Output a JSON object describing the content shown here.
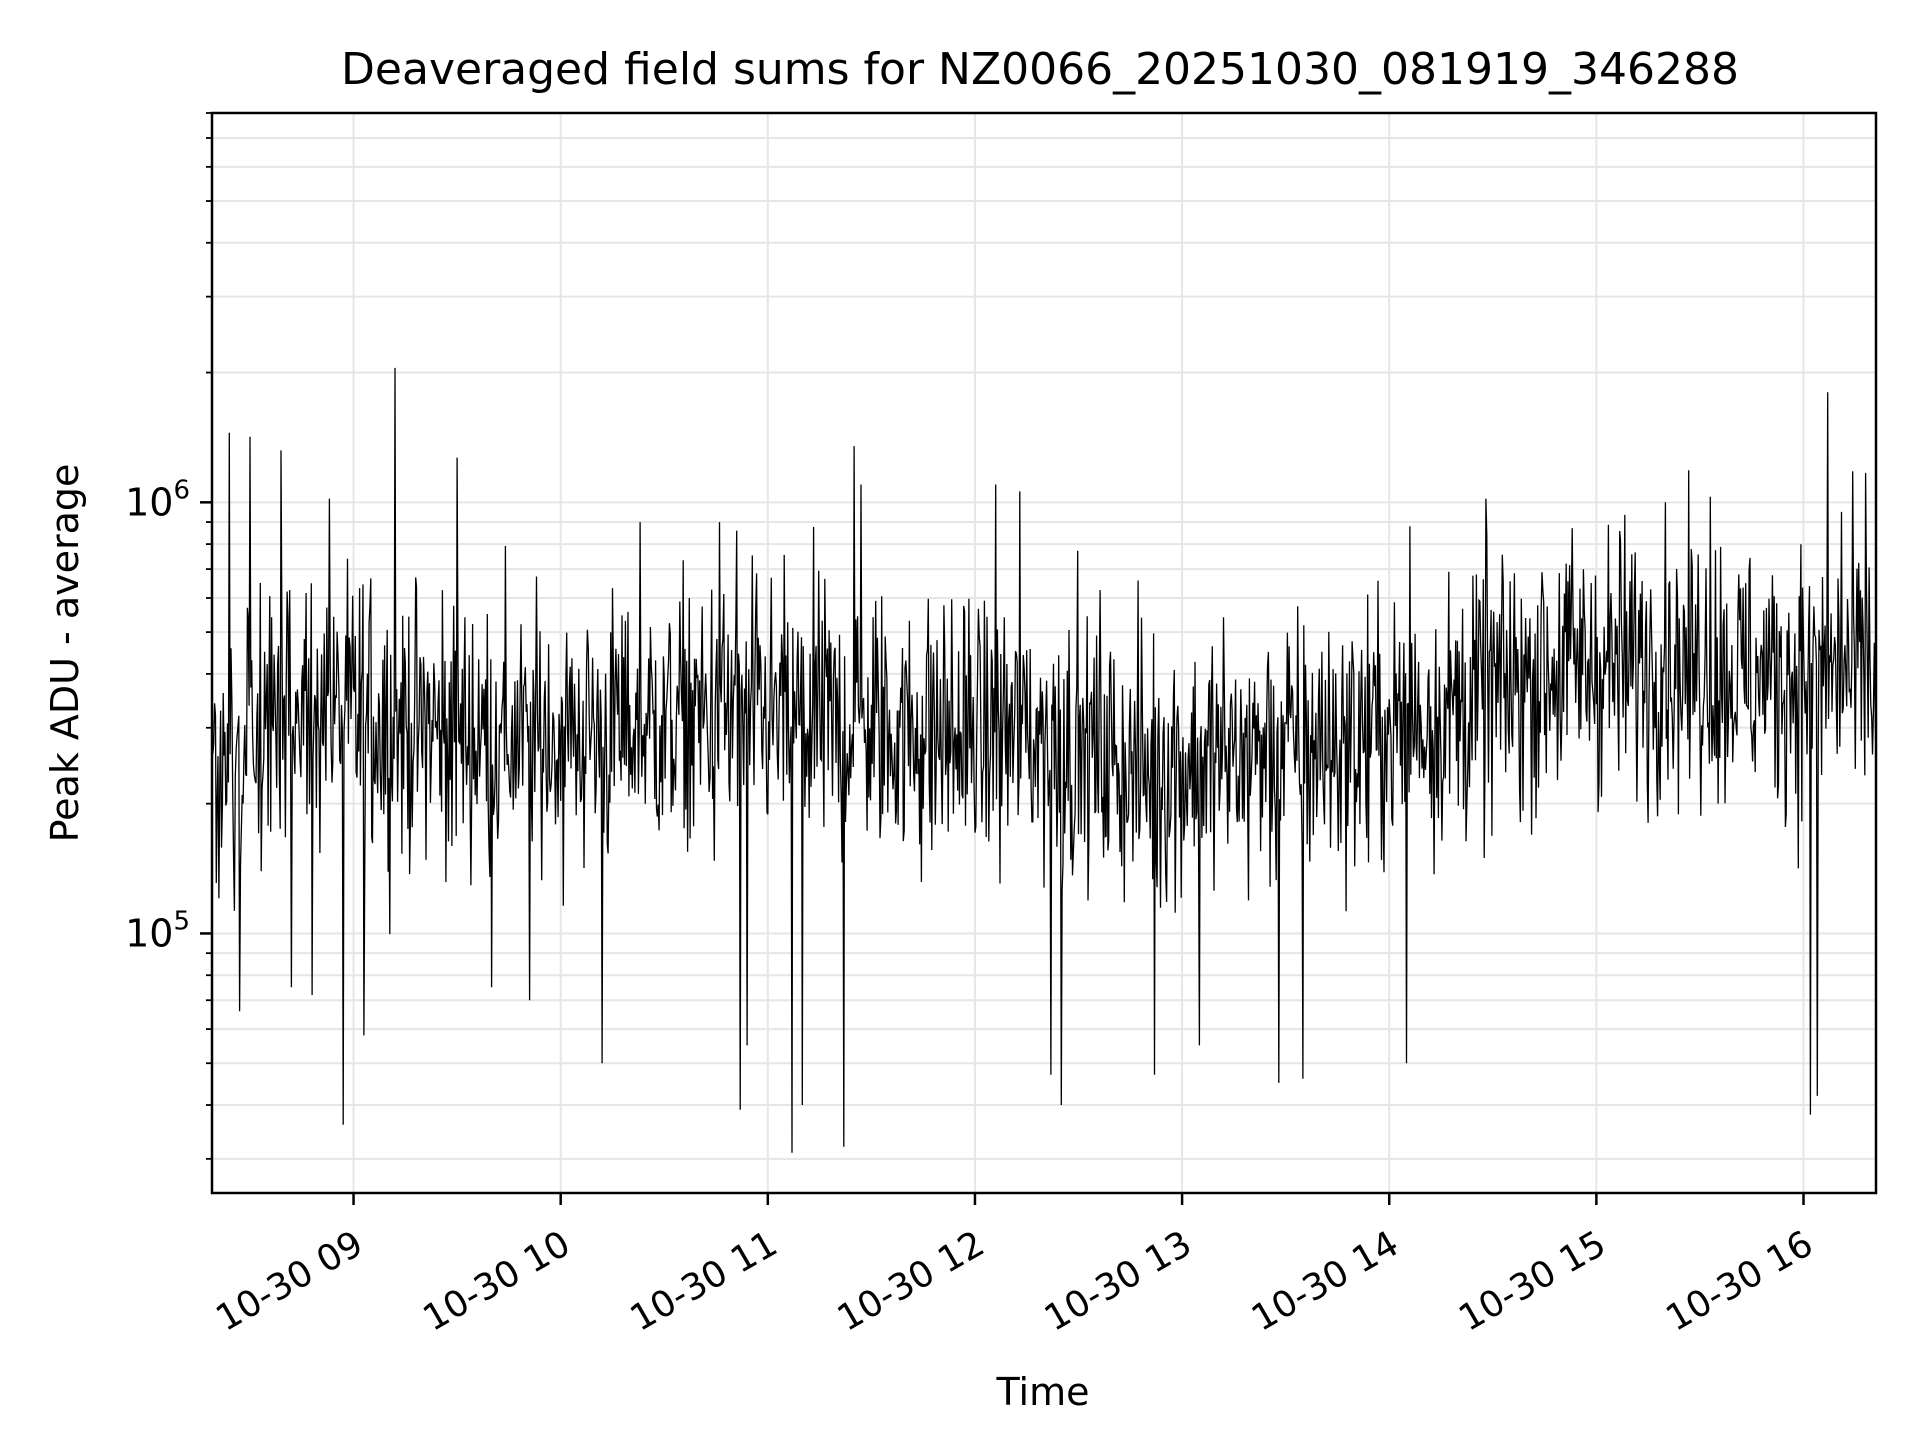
{
  "chart_data": {
    "type": "line",
    "title": "Deaveraged field sums for NZ0066_20251030_081919_346288",
    "xlabel": "Time",
    "ylabel": "Peak ADU - average",
    "yscale": "log",
    "xlim": [
      "2025-10-30 08:19",
      "2025-10-30 16:21"
    ],
    "ylim": [
      25000,
      8000000
    ],
    "x_ticks": [
      {
        "value": "2025-10-30 09:00",
        "label": "10-30 09"
      },
      {
        "value": "2025-10-30 10:00",
        "label": "10-30 10"
      },
      {
        "value": "2025-10-30 11:00",
        "label": "10-30 11"
      },
      {
        "value": "2025-10-30 12:00",
        "label": "10-30 12"
      },
      {
        "value": "2025-10-30 13:00",
        "label": "10-30 13"
      },
      {
        "value": "2025-10-30 14:00",
        "label": "10-30 14"
      },
      {
        "value": "2025-10-30 15:00",
        "label": "10-30 15"
      },
      {
        "value": "2025-10-30 16:00",
        "label": "10-30 16"
      }
    ],
    "y_ticks": [
      {
        "value": 100000,
        "base": "10",
        "exp": "5"
      },
      {
        "value": 1000000,
        "base": "10",
        "exp": "6"
      }
    ],
    "grid": true,
    "series": [
      {
        "name": "deaveraged field sum",
        "color": "#000000",
        "sample_minutes": 0.25,
        "baseline_hours": [
          0,
          0.5,
          1.0,
          1.5,
          2.0,
          2.5,
          3.0,
          3.5,
          4.0,
          4.5,
          5.0,
          5.5,
          6.0,
          6.5,
          7.0,
          7.5,
          8.0
        ],
        "baseline_values": [
          250000,
          330000,
          300000,
          280000,
          300000,
          320000,
          310000,
          290000,
          290000,
          240000,
          260000,
          280000,
          330000,
          420000,
          430000,
          390000,
          400000
        ],
        "spread_log10": 0.28,
        "extremes": [
          {
            "t": "08:20",
            "y": 320000
          },
          {
            "t": "08:24",
            "y": 1450000
          },
          {
            "t": "08:27",
            "y": 66000
          },
          {
            "t": "08:30",
            "y": 1420000
          },
          {
            "t": "08:33",
            "y": 650000
          },
          {
            "t": "08:39",
            "y": 1320000
          },
          {
            "t": "08:42",
            "y": 75000
          },
          {
            "t": "08:48",
            "y": 72000
          },
          {
            "t": "08:53",
            "y": 1020000
          },
          {
            "t": "08:57",
            "y": 36000
          },
          {
            "t": "09:03",
            "y": 58000
          },
          {
            "t": "09:12",
            "y": 2050000
          },
          {
            "t": "09:30",
            "y": 1270000
          },
          {
            "t": "09:40",
            "y": 75000
          },
          {
            "t": "09:51",
            "y": 70000
          },
          {
            "t": "10:12",
            "y": 50000
          },
          {
            "t": "10:23",
            "y": 900000
          },
          {
            "t": "10:46",
            "y": 900000
          },
          {
            "t": "10:51",
            "y": 860000
          },
          {
            "t": "10:52",
            "y": 39000
          },
          {
            "t": "10:54",
            "y": 55000
          },
          {
            "t": "11:07",
            "y": 31000
          },
          {
            "t": "11:10",
            "y": 40000
          },
          {
            "t": "11:22",
            "y": 32000
          },
          {
            "t": "11:25",
            "y": 1350000
          },
          {
            "t": "11:27",
            "y": 1100000
          },
          {
            "t": "12:06",
            "y": 1100000
          },
          {
            "t": "12:13",
            "y": 1060000
          },
          {
            "t": "12:22",
            "y": 47000
          },
          {
            "t": "12:25",
            "y": 40000
          },
          {
            "t": "12:52",
            "y": 47000
          },
          {
            "t": "13:05",
            "y": 55000
          },
          {
            "t": "13:28",
            "y": 45000
          },
          {
            "t": "13:35",
            "y": 46000
          },
          {
            "t": "14:05",
            "y": 50000
          },
          {
            "t": "14:06",
            "y": 880000
          },
          {
            "t": "14:28",
            "y": 1020000
          },
          {
            "t": "15:20",
            "y": 1000000
          },
          {
            "t": "15:33",
            "y": 1030000
          },
          {
            "t": "16:02",
            "y": 38000
          },
          {
            "t": "16:04",
            "y": 42000
          },
          {
            "t": "16:07",
            "y": 1800000
          },
          {
            "t": "16:11",
            "y": 950000
          },
          {
            "t": "16:18",
            "y": 1170000
          },
          {
            "t": "16:20",
            "y": 260000
          }
        ]
      }
    ]
  }
}
